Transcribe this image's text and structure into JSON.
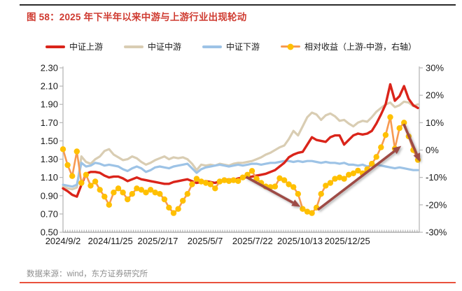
{
  "figure": {
    "title": "图 58：2025 年下半年以来中游与上游行业出现轮动",
    "source": "数据来源：wind，东方证券研究所"
  },
  "colors": {
    "title_red": "#cf3a30",
    "top_rule": "#2b2b2b",
    "bottom_rule": "#e9523d",
    "upstream": "#da241a",
    "midstream": "#d9cdb3",
    "downstream": "#9dc3e6",
    "relative_line": "#f79a52",
    "relative_marker": "#ffc000",
    "arrow": "#9e4b46",
    "axis_line": "#b7b7b7",
    "axis_bottom": "#9a9a9a",
    "axis_text": "#1a1a1a"
  },
  "legend": [
    {
      "label": "中证上游",
      "color": "#da241a",
      "type": "line"
    },
    {
      "label": "中证中游",
      "color": "#d9cdb3",
      "type": "line"
    },
    {
      "label": "中证下游",
      "color": "#9dc3e6",
      "type": "line"
    },
    {
      "label": "相对收益（上游-中游，右轴）",
      "color": "#f79a52",
      "marker_color": "#ffc000",
      "type": "line-marker"
    }
  ],
  "chart_data": {
    "type": "line",
    "title": "图 58：2025 年下半年以来中游与上游行业出现轮动",
    "x_labels": [
      "2024/9/2",
      "2024/11/25",
      "2025/2/17",
      "2025/5/7",
      "2025/7/22",
      "2025/10/13",
      "2025/12/25"
    ],
    "left_axis": {
      "min": 0.5,
      "max": 2.3,
      "tick_labels": [
        "2.30",
        "2.10",
        "1.90",
        "1.70",
        "1.50",
        "1.30",
        "1.10",
        "0.90",
        "0.70",
        "0.50"
      ]
    },
    "right_axis": {
      "min": -30,
      "max": 30,
      "tick_labels": [
        "30%",
        "20%",
        "10%",
        "0%",
        "-10%",
        "-20%",
        "-30%"
      ]
    },
    "grid": false,
    "legend_position": "top",
    "series": [
      {
        "name": "中证上游",
        "axis": "left",
        "color": "#da241a",
        "width": 3.4,
        "values": [
          0.98,
          0.95,
          0.91,
          0.89,
          1.02,
          1.14,
          1.16,
          1.16,
          1.15,
          1.12,
          1.1,
          1.11,
          1.11,
          1.09,
          1.06,
          1.08,
          1.1,
          1.08,
          1.07,
          1.06,
          1.05,
          1.04,
          1.03,
          1.03,
          1.05,
          1.06,
          1.07,
          1.08,
          1.06,
          1.04,
          1.05,
          1.06,
          1.05,
          1.04,
          1.06,
          1.07,
          1.08,
          1.07,
          1.09,
          1.1,
          1.1,
          1.11,
          1.12,
          1.13,
          1.14,
          1.16,
          1.18,
          1.22,
          1.26,
          1.32,
          1.35,
          1.37,
          1.38,
          1.46,
          1.54,
          1.51,
          1.5,
          1.49,
          1.54,
          1.56,
          1.56,
          1.46,
          1.51,
          1.56,
          1.58,
          1.57,
          1.58,
          1.61,
          1.69,
          1.79,
          1.9,
          2.12,
          1.94,
          1.99,
          2.1,
          1.96,
          1.89,
          1.86
        ]
      },
      {
        "name": "中证中游",
        "axis": "left",
        "color": "#d9cdb3",
        "width": 3.2,
        "values": [
          1.0,
          0.98,
          0.97,
          0.99,
          1.33,
          1.27,
          1.25,
          1.3,
          1.33,
          1.39,
          1.41,
          1.35,
          1.32,
          1.29,
          1.3,
          1.33,
          1.31,
          1.27,
          1.24,
          1.26,
          1.29,
          1.31,
          1.33,
          1.3,
          1.32,
          1.31,
          1.32,
          1.3,
          1.25,
          1.18,
          1.24,
          1.23,
          1.24,
          1.23,
          1.25,
          1.24,
          1.23,
          1.25,
          1.26,
          1.26,
          1.27,
          1.28,
          1.3,
          1.32,
          1.35,
          1.37,
          1.4,
          1.43,
          1.45,
          1.52,
          1.61,
          1.56,
          1.66,
          1.76,
          1.81,
          1.79,
          1.73,
          1.78,
          1.8,
          1.77,
          1.72,
          1.73,
          1.69,
          1.66,
          1.7,
          1.72,
          1.71,
          1.76,
          1.82,
          1.86,
          1.9,
          1.92,
          1.87,
          1.89,
          1.93,
          1.92,
          1.88,
          1.9
        ]
      },
      {
        "name": "中证下游",
        "axis": "left",
        "color": "#9dc3e6",
        "width": 3.2,
        "values": [
          1.02,
          1.01,
          1.0,
          1.02,
          1.26,
          1.22,
          1.23,
          1.26,
          1.25,
          1.23,
          1.24,
          1.23,
          1.22,
          1.19,
          1.17,
          1.2,
          1.22,
          1.2,
          1.16,
          1.18,
          1.21,
          1.22,
          1.21,
          1.2,
          1.22,
          1.23,
          1.24,
          1.25,
          1.2,
          1.15,
          1.19,
          1.21,
          1.22,
          1.23,
          1.24,
          1.23,
          1.22,
          1.23,
          1.24,
          1.23,
          1.24,
          1.25,
          1.25,
          1.24,
          1.25,
          1.26,
          1.26,
          1.27,
          1.28,
          1.28,
          1.27,
          1.28,
          1.27,
          1.28,
          1.28,
          1.27,
          1.26,
          1.27,
          1.26,
          1.26,
          1.25,
          1.26,
          1.24,
          1.24,
          1.23,
          1.24,
          1.22,
          1.23,
          1.24,
          1.23,
          1.22,
          1.21,
          1.2,
          1.21,
          1.2,
          1.19,
          1.18,
          1.18
        ]
      },
      {
        "name": "相对收益（上游-中游，右轴）",
        "axis": "right",
        "color": "#f79a52",
        "marker_color": "#ffc000",
        "width": 2.6,
        "marker_r": 4.2,
        "values": [
          0.3,
          -5.5,
          -9.5,
          -0.5,
          -12,
          -9,
          -13,
          -11.5,
          -14.5,
          -17,
          -20,
          -15.5,
          -14,
          -15.5,
          -18,
          -16,
          -14,
          -14.5,
          -15.5,
          -14.5,
          -15.5,
          -16,
          -18,
          -21,
          -23,
          -21.5,
          -18.5,
          -16,
          -12.5,
          -10.5,
          -11.5,
          -12,
          -12.5,
          -14,
          -11.5,
          -11,
          -11.3,
          -11,
          -11.3,
          -10,
          -9,
          -7.6,
          -10.5,
          -12,
          -13.3,
          -13.5,
          -13.3,
          -10.3,
          -11,
          -12.5,
          -13.5,
          -16,
          -21.5,
          -22.5,
          -23,
          -21,
          -16,
          -13,
          -12,
          -10.5,
          -10,
          -10.5,
          -9,
          -8.5,
          -7.5,
          -8.5,
          -7,
          -5,
          -2.5,
          1,
          5.5,
          12,
          0.5,
          8,
          10,
          5,
          0,
          -3.6
        ]
      }
    ],
    "annotations": {
      "arrows": [
        {
          "name": "rotation-down-arrow-1",
          "x1": 0.516,
          "y1": -9.8,
          "x2": 0.669,
          "y2": -20.7
        },
        {
          "name": "rotation-up-arrow",
          "x1": 0.718,
          "y1": -21.8,
          "x2": 0.953,
          "y2": 1.5
        },
        {
          "name": "rotation-down-arrow-2",
          "x1": 0.96,
          "y1": 9.5,
          "x2": 1.006,
          "y2": -4.3
        }
      ],
      "arrow_color": "#9e4b46"
    }
  }
}
